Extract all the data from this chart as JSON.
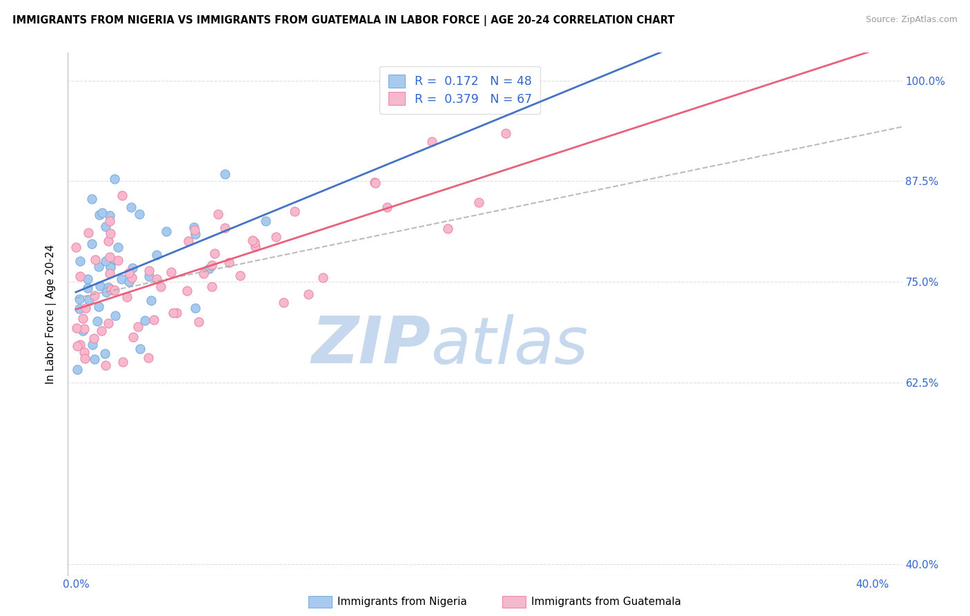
{
  "title": "IMMIGRANTS FROM NIGERIA VS IMMIGRANTS FROM GUATEMALA IN LABOR FORCE | AGE 20-24 CORRELATION CHART",
  "source": "Source: ZipAtlas.com",
  "ylabel": "In Labor Force | Age 20-24",
  "xlim": [
    -0.004,
    0.415
  ],
  "ylim": [
    0.385,
    1.035
  ],
  "xticks": [
    0.0,
    0.1,
    0.2,
    0.3,
    0.4
  ],
  "xticklabels": [
    "0.0%",
    "",
    "",
    "",
    "40.0%"
  ],
  "yticks": [
    0.4,
    0.625,
    0.75,
    0.875,
    1.0
  ],
  "yticklabels_right": [
    "40.0%",
    "62.5%",
    "75.0%",
    "87.5%",
    "100.0%"
  ],
  "nigeria_color": "#a8caee",
  "nigeria_edge_color": "#7aaedd",
  "guatemala_color": "#f5b8cc",
  "guatemala_edge_color": "#ee88aa",
  "nigeria_line_color": "#4472c4",
  "guatemala_line_color": "#e8607a",
  "dash_line_color": "#8ab0d8",
  "nigeria_R": 0.172,
  "nigeria_N": 48,
  "guatemala_R": 0.379,
  "guatemala_N": 67,
  "grid_color": "#e0e0e0",
  "tick_label_color": "#3366cc",
  "watermark_zip_color": "#c5d8ee",
  "watermark_atlas_color": "#c5d8ee"
}
